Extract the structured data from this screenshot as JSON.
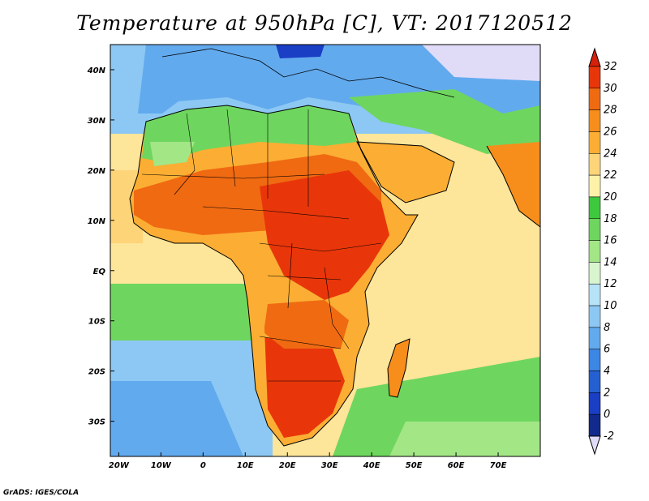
{
  "title": "Temperature at 950hPa [C], VT: 2017120512",
  "credit": "GrADS: IGES/COLA",
  "map": {
    "lon_range": [
      -22,
      80
    ],
    "lat_range": [
      -37,
      45
    ],
    "lon_ticks": [
      "20W",
      "10W",
      "0",
      "10E",
      "20E",
      "30E",
      "40E",
      "50E",
      "60E",
      "70E"
    ],
    "lat_ticks": [
      "40N",
      "30N",
      "20N",
      "10N",
      "EQ",
      "10S",
      "20S",
      "30S"
    ]
  },
  "colorbar": {
    "levels": [
      "32",
      "30",
      "28",
      "26",
      "24",
      "22",
      "20",
      "18",
      "16",
      "14",
      "12",
      "10",
      "8",
      "6",
      "4",
      "2",
      "0",
      "-2"
    ],
    "colors": [
      "#e8360a",
      "#f06a12",
      "#f78e1c",
      "#fbae33",
      "#fdd478",
      "#fef1a8",
      "#3ec83e",
      "#6ed65e",
      "#a3e686",
      "#d8f5d0",
      "#b7e3f8",
      "#8cc8f3",
      "#62aaee",
      "#3c86e4",
      "#2460d2",
      "#1a3ec4",
      "#122a8c"
    ],
    "top_arrow_color": "#d6200a",
    "bottom_arrow_color": "#e0dcf8"
  },
  "colors": {
    "sea_warm": "#fde59a",
    "sea_mid": "#6ed65e",
    "sea_cool": "#8cc8f3",
    "land_hot": "#e8360a",
    "land_warm": "#f78e1c",
    "land_mild": "#fdd478",
    "land_cool": "#6ed65e",
    "land_cold": "#62aaee"
  }
}
